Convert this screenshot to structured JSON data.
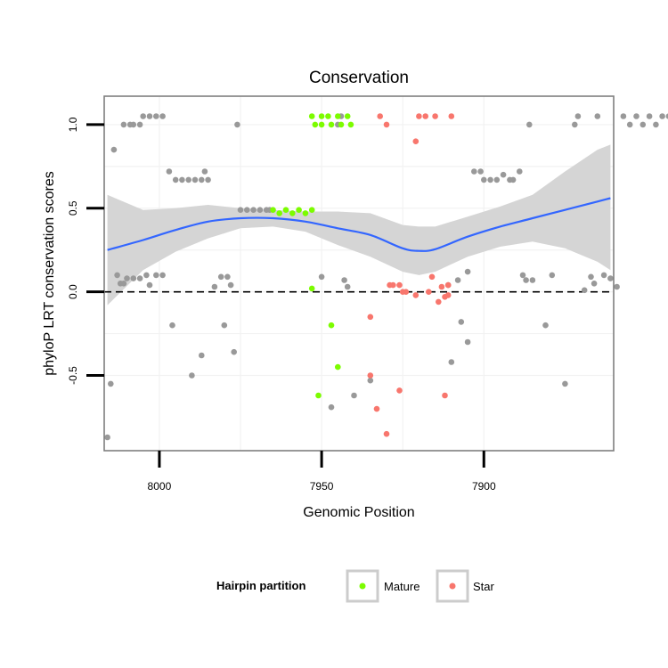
{
  "chart_data": {
    "type": "scatter",
    "title": "Conservation",
    "xlabel": "Genomic Position",
    "ylabel": "phyloP LRT conservation scores",
    "xlim": [
      8017,
      7860
    ],
    "ylim": [
      -0.95,
      1.17
    ],
    "x_reversed": true,
    "x_ticks": [
      8000,
      7950,
      7900
    ],
    "x_tick_labels": [
      "8000",
      "7950",
      "7900"
    ],
    "y_ticks": [
      -0.5,
      0.0,
      0.5,
      1.0
    ],
    "y_tick_labels": [
      "-0.5",
      "0.0",
      "0.5",
      "1.0"
    ],
    "reference_line": {
      "y": 0,
      "style": "dashed"
    },
    "legend": {
      "title": "Hairpin partition",
      "entries": [
        {
          "label": "Mature",
          "color": "#7cfc00"
        },
        {
          "label": "Star",
          "color": "#f8766d"
        }
      ]
    },
    "colors": {
      "other": "#999999",
      "mature": "#7cfc00",
      "star": "#f8766d",
      "smooth": "#3366ff",
      "band": "#d3d3d3"
    },
    "smooth_line": {
      "x": [
        8016,
        8005,
        7995,
        7985,
        7975,
        7965,
        7955,
        7945,
        7935,
        7925,
        7920,
        7915,
        7905,
        7895,
        7885,
        7875,
        7865,
        7861
      ],
      "y": [
        0.25,
        0.31,
        0.37,
        0.42,
        0.44,
        0.44,
        0.42,
        0.38,
        0.34,
        0.26,
        0.245,
        0.255,
        0.33,
        0.39,
        0.44,
        0.49,
        0.54,
        0.56
      ],
      "lower": [
        -0.08,
        0.13,
        0.24,
        0.32,
        0.38,
        0.39,
        0.36,
        0.28,
        0.21,
        0.12,
        0.1,
        0.12,
        0.21,
        0.27,
        0.3,
        0.26,
        0.18,
        0.13
      ],
      "upper": [
        0.58,
        0.49,
        0.5,
        0.52,
        0.5,
        0.49,
        0.48,
        0.48,
        0.47,
        0.4,
        0.39,
        0.39,
        0.45,
        0.51,
        0.58,
        0.72,
        0.85,
        0.88
      ]
    },
    "series": [
      {
        "name": "Other",
        "points": [
          [
            8016,
            -0.87
          ],
          [
            8015,
            -0.55
          ],
          [
            8014,
            0.85
          ],
          [
            8013,
            0.1
          ],
          [
            8012,
            0.05
          ],
          [
            8011,
            0.05
          ],
          [
            8010,
            0.08
          ],
          [
            8008,
            0.08
          ],
          [
            8006,
            0.08
          ],
          [
            8004,
            0.1
          ],
          [
            8003,
            0.04
          ],
          [
            8001,
            0.1
          ],
          [
            7999,
            0.1
          ],
          [
            8011,
            1.0
          ],
          [
            8009,
            1.0
          ],
          [
            8008,
            1.0
          ],
          [
            8006,
            1.0
          ],
          [
            8005,
            1.05
          ],
          [
            8003,
            1.05
          ],
          [
            8001,
            1.05
          ],
          [
            7999,
            1.05
          ],
          [
            7997,
            0.72
          ],
          [
            7995,
            0.67
          ],
          [
            7993,
            0.67
          ],
          [
            7991,
            0.67
          ],
          [
            7989,
            0.67
          ],
          [
            7987,
            0.67
          ],
          [
            7986,
            0.72
          ],
          [
            7985,
            0.67
          ],
          [
            7996,
            -0.2
          ],
          [
            7990,
            -0.5
          ],
          [
            7987,
            -0.38
          ],
          [
            7983,
            0.03
          ],
          [
            7981,
            0.09
          ],
          [
            7980,
            -0.2
          ],
          [
            7979,
            0.09
          ],
          [
            7978,
            0.04
          ],
          [
            7977,
            -0.36
          ],
          [
            7976,
            1.0
          ],
          [
            7975,
            0.49
          ],
          [
            7973,
            0.49
          ],
          [
            7971,
            0.49
          ],
          [
            7969,
            0.49
          ],
          [
            7967,
            0.49
          ],
          [
            7966,
            0.49
          ],
          [
            7950,
            0.09
          ],
          [
            7947,
            -0.69
          ],
          [
            7945,
            1.0
          ],
          [
            7944,
            1.05
          ],
          [
            7943,
            0.07
          ],
          [
            7942,
            0.03
          ],
          [
            7940,
            -0.62
          ],
          [
            7935,
            -0.53
          ],
          [
            7911,
            0.04
          ],
          [
            7908,
            0.07
          ],
          [
            7905,
            0.12
          ],
          [
            7903,
            0.72
          ],
          [
            7901,
            0.72
          ],
          [
            7900,
            0.67
          ],
          [
            7898,
            0.67
          ],
          [
            7896,
            0.67
          ],
          [
            7894,
            0.7
          ],
          [
            7892,
            0.67
          ],
          [
            7891,
            0.67
          ],
          [
            7889,
            0.72
          ],
          [
            7888,
            0.1
          ],
          [
            7887,
            0.07
          ],
          [
            7886,
            1.0
          ],
          [
            7885,
            0.07
          ],
          [
            7881,
            -0.2
          ],
          [
            7879,
            0.1
          ],
          [
            7875,
            -0.55
          ],
          [
            7872,
            1.0
          ],
          [
            7871,
            1.05
          ],
          [
            7869,
            0.01
          ],
          [
            7867,
            0.09
          ],
          [
            7866,
            0.05
          ],
          [
            7865,
            1.05
          ],
          [
            7863,
            0.1
          ],
          [
            7861,
            0.08
          ],
          [
            7859,
            0.03
          ],
          [
            7857,
            1.05
          ],
          [
            7855,
            1.0
          ],
          [
            7853,
            1.05
          ],
          [
            7851,
            1.0
          ],
          [
            7849,
            1.05
          ],
          [
            7847,
            1.0
          ],
          [
            7845,
            1.05
          ],
          [
            7843,
            1.05
          ],
          [
            7841,
            0.1
          ],
          [
            7839,
            -0.06
          ],
          [
            7838,
            0.02
          ],
          [
            7836,
            -0.15
          ],
          [
            7835,
            -0.55
          ],
          [
            7905,
            -0.3
          ],
          [
            7907,
            -0.18
          ],
          [
            7910,
            -0.42
          ]
        ]
      },
      {
        "name": "Mature",
        "points": [
          [
            7965,
            0.49
          ],
          [
            7963,
            0.47
          ],
          [
            7961,
            0.49
          ],
          [
            7959,
            0.47
          ],
          [
            7957,
            0.49
          ],
          [
            7955,
            0.47
          ],
          [
            7953,
            0.49
          ],
          [
            7953,
            0.02
          ],
          [
            7953,
            1.05
          ],
          [
            7952,
            1.0
          ],
          [
            7950,
            1.05
          ],
          [
            7950,
            1.0
          ],
          [
            7948,
            1.05
          ],
          [
            7947,
            1.0
          ],
          [
            7945,
            1.05
          ],
          [
            7944,
            1.0
          ],
          [
            7942,
            1.05
          ],
          [
            7941,
            1.0
          ],
          [
            7951,
            -0.62
          ],
          [
            7947,
            -0.2
          ],
          [
            7945,
            -0.45
          ]
        ]
      },
      {
        "name": "Star",
        "points": [
          [
            7932,
            1.05
          ],
          [
            7930,
            1.0
          ],
          [
            7929,
            0.04
          ],
          [
            7928,
            0.04
          ],
          [
            7926,
            0.04
          ],
          [
            7925,
            0.0
          ],
          [
            7924,
            0.0
          ],
          [
            7921,
            0.9
          ],
          [
            7921,
            -0.02
          ],
          [
            7920,
            1.05
          ],
          [
            7918,
            1.05
          ],
          [
            7917,
            0.0
          ],
          [
            7916,
            0.09
          ],
          [
            7915,
            1.05
          ],
          [
            7914,
            -0.06
          ],
          [
            7913,
            0.03
          ],
          [
            7912,
            -0.03
          ],
          [
            7911,
            -0.02
          ],
          [
            7911,
            0.04
          ],
          [
            7910,
            1.05
          ],
          [
            7935,
            -0.15
          ],
          [
            7935,
            -0.5
          ],
          [
            7933,
            -0.7
          ],
          [
            7930,
            -0.85
          ],
          [
            7926,
            -0.59
          ],
          [
            7912,
            -0.62
          ]
        ]
      }
    ]
  }
}
